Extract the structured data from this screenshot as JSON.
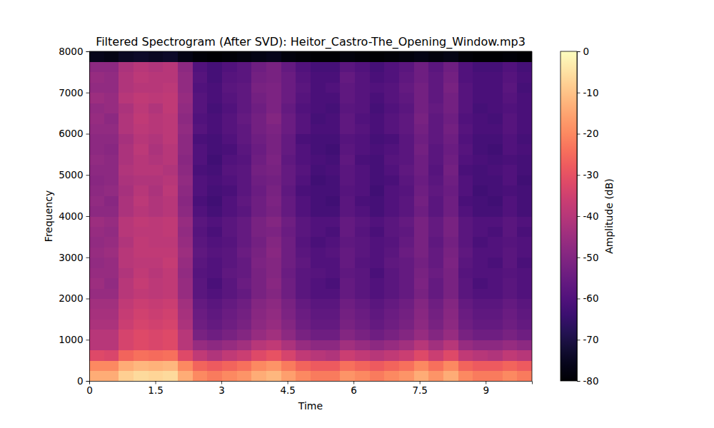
{
  "chart_data": {
    "type": "heatmap",
    "title": "Filtered Spectrogram (After SVD): Heitor_Castro-The_Opening_Window.mp3",
    "x_label": "Time",
    "y_label": "Frequency",
    "xlim": [
      0,
      10.05
    ],
    "ylim": [
      0,
      8000
    ],
    "xticks": [
      0,
      1.5,
      3,
      4.5,
      6,
      7.5,
      9
    ],
    "yticks": [
      0,
      1000,
      2000,
      3000,
      4000,
      5000,
      6000,
      7000,
      8000
    ],
    "x_edges": [
      0,
      0.335,
      0.67,
      1.005,
      1.34,
      1.675,
      2.01,
      2.345,
      2.68,
      3.015,
      3.35,
      3.685,
      4.02,
      4.355,
      4.69,
      5.025,
      5.36,
      5.695,
      6.03,
      6.365,
      6.7,
      7.035,
      7.37,
      7.705,
      8.04,
      8.375,
      8.71,
      9.045,
      9.38,
      9.715,
      10.05
    ],
    "y_edges": [
      0,
      250,
      500,
      750,
      1000,
      1250,
      1500,
      1750,
      2000,
      2250,
      2500,
      2750,
      3000,
      3250,
      3500,
      3750,
      4000,
      4250,
      4500,
      4750,
      5000,
      5250,
      5500,
      5750,
      6000,
      6250,
      6500,
      6750,
      7000,
      7250,
      7500,
      7750,
      8000
    ],
    "cells": [
      [
        -14,
        -14,
        -8,
        -6,
        -7,
        -6,
        -14,
        -20,
        -22,
        -20,
        -18,
        -14,
        -12,
        -16,
        -20,
        -22,
        -22,
        -18,
        -20,
        -22,
        -20,
        -18,
        -14,
        -18,
        -14,
        -20,
        -22,
        -22,
        -20,
        -22
      ],
      [
        -20,
        -20,
        -14,
        -12,
        -13,
        -12,
        -20,
        -26,
        -28,
        -26,
        -24,
        -20,
        -18,
        -22,
        -26,
        -28,
        -28,
        -24,
        -26,
        -28,
        -26,
        -24,
        -20,
        -24,
        -20,
        -26,
        -28,
        -28,
        -26,
        -28
      ],
      [
        -32,
        -33,
        -26,
        -24,
        -25,
        -24,
        -32,
        -38,
        -41,
        -38,
        -36,
        -32,
        -30,
        -34,
        -38,
        -40,
        -41,
        -36,
        -38,
        -40,
        -38,
        -36,
        -32,
        -36,
        -32,
        -38,
        -40,
        -41,
        -38,
        -40
      ],
      [
        -40,
        -40,
        -34,
        -32,
        -33,
        -32,
        -40,
        -46,
        -48,
        -46,
        -44,
        -40,
        -38,
        -42,
        -46,
        -48,
        -48,
        -44,
        -46,
        -48,
        -46,
        -44,
        -40,
        -44,
        -40,
        -46,
        -48,
        -48,
        -46,
        -48
      ],
      [
        -40,
        -40,
        -34,
        -32,
        -33,
        -32,
        -40,
        -52,
        -54,
        -52,
        -50,
        -46,
        -44,
        -48,
        -52,
        -54,
        -54,
        -50,
        -52,
        -54,
        -52,
        -50,
        -46,
        -50,
        -46,
        -52,
        -54,
        -54,
        -52,
        -54
      ],
      [
        -42,
        -42,
        -36,
        -34,
        -35,
        -34,
        -42,
        -54,
        -56,
        -54,
        -52,
        -48,
        -46,
        -50,
        -54,
        -56,
        -56,
        -52,
        -54,
        -56,
        -54,
        -52,
        -48,
        -52,
        -48,
        -54,
        -56,
        -56,
        -54,
        -56
      ],
      [
        -43,
        -43,
        -37,
        -35,
        -36,
        -35,
        -43,
        -55,
        -57,
        -55,
        -53,
        -49,
        -47,
        -51,
        -55,
        -57,
        -57,
        -53,
        -55,
        -57,
        -55,
        -53,
        -49,
        -53,
        -49,
        -55,
        -57,
        -57,
        -55,
        -57
      ],
      [
        -44,
        -44,
        -38,
        -36,
        -37,
        -36,
        -44,
        -56,
        -58,
        -56,
        -54,
        -50,
        -48,
        -52,
        -56,
        -58,
        -58,
        -54,
        -56,
        -58,
        -56,
        -54,
        -50,
        -54,
        -50,
        -56,
        -58,
        -58,
        -56,
        -58
      ],
      [
        -46,
        -46,
        -40,
        -38,
        -39,
        -38,
        -46,
        -58,
        -60,
        -58,
        -56,
        -52,
        -50,
        -54,
        -58,
        -60,
        -60,
        -56,
        -58,
        -60,
        -58,
        -56,
        -52,
        -56,
        -52,
        -58,
        -60,
        -60,
        -58,
        -60
      ],
      [
        -45,
        -47,
        -40,
        -37,
        -39,
        -38,
        -46,
        -58,
        -61,
        -58,
        -55,
        -52,
        -49,
        -54,
        -58,
        -60,
        -61,
        -56,
        -58,
        -60,
        -58,
        -56,
        -51,
        -56,
        -52,
        -58,
        -61,
        -60,
        -58,
        -60
      ],
      [
        -46,
        -46,
        -41,
        -38,
        -40,
        -38,
        -47,
        -59,
        -60,
        -57,
        -56,
        -52,
        -50,
        -55,
        -58,
        -59,
        -60,
        -57,
        -58,
        -61,
        -58,
        -56,
        -52,
        -55,
        -52,
        -59,
        -60,
        -60,
        -59,
        -60
      ],
      [
        -47,
        -46,
        -40,
        -39,
        -39,
        -37,
        -46,
        -58,
        -60,
        -58,
        -56,
        -51,
        -50,
        -54,
        -57,
        -60,
        -60,
        -56,
        -59,
        -60,
        -57,
        -56,
        -53,
        -56,
        -51,
        -58,
        -60,
        -61,
        -58,
        -61
      ],
      [
        -46,
        -45,
        -40,
        -38,
        -38,
        -38,
        -45,
        -57,
        -59,
        -58,
        -55,
        -52,
        -49,
        -54,
        -58,
        -60,
        -59,
        -56,
        -58,
        -60,
        -58,
        -55,
        -52,
        -56,
        -52,
        -57,
        -60,
        -60,
        -58,
        -60
      ],
      [
        -47,
        -46,
        -41,
        -38,
        -39,
        -39,
        -46,
        -58,
        -60,
        -59,
        -56,
        -53,
        -50,
        -54,
        -59,
        -61,
        -60,
        -57,
        -58,
        -60,
        -59,
        -56,
        -52,
        -57,
        -53,
        -58,
        -61,
        -60,
        -59,
        -60
      ],
      [
        -46,
        -47,
        -40,
        -39,
        -39,
        -38,
        -47,
        -59,
        -61,
        -58,
        -56,
        -52,
        -51,
        -55,
        -58,
        -60,
        -61,
        -56,
        -59,
        -61,
        -58,
        -57,
        -52,
        -56,
        -52,
        -58,
        -60,
        -61,
        -58,
        -61
      ],
      [
        -45,
        -46,
        -40,
        -38,
        -39,
        -38,
        -46,
        -58,
        -60,
        -58,
        -56,
        -52,
        -50,
        -54,
        -58,
        -60,
        -60,
        -56,
        -58,
        -60,
        -58,
        -56,
        -52,
        -56,
        -52,
        -58,
        -60,
        -60,
        -58,
        -60
      ],
      [
        -48,
        -48,
        -42,
        -40,
        -41,
        -40,
        -48,
        -60,
        -62,
        -60,
        -58,
        -54,
        -52,
        -56,
        -60,
        -62,
        -62,
        -58,
        -60,
        -62,
        -60,
        -58,
        -54,
        -58,
        -54,
        -60,
        -62,
        -62,
        -60,
        -62
      ],
      [
        -47,
        -49,
        -42,
        -39,
        -41,
        -40,
        -49,
        -61,
        -63,
        -60,
        -57,
        -54,
        -51,
        -56,
        -60,
        -62,
        -63,
        -58,
        -61,
        -62,
        -60,
        -58,
        -53,
        -58,
        -54,
        -61,
        -62,
        -63,
        -60,
        -62
      ],
      [
        -48,
        -47,
        -43,
        -40,
        -42,
        -39,
        -48,
        -60,
        -62,
        -61,
        -58,
        -55,
        -52,
        -57,
        -61,
        -62,
        -62,
        -59,
        -60,
        -63,
        -60,
        -59,
        -54,
        -57,
        -55,
        -60,
        -63,
        -62,
        -61,
        -62
      ],
      [
        -49,
        -48,
        -42,
        -41,
        -41,
        -40,
        -47,
        -60,
        -61,
        -60,
        -58,
        -54,
        -53,
        -56,
        -60,
        -63,
        -62,
        -58,
        -60,
        -62,
        -61,
        -58,
        -55,
        -58,
        -54,
        -60,
        -62,
        -62,
        -60,
        -63
      ],
      [
        -48,
        -48,
        -41,
        -40,
        -40,
        -41,
        -48,
        -61,
        -62,
        -59,
        -58,
        -53,
        -52,
        -56,
        -59,
        -62,
        -61,
        -58,
        -60,
        -62,
        -60,
        -57,
        -54,
        -59,
        -53,
        -61,
        -62,
        -61,
        -60,
        -62
      ],
      [
        -47,
        -48,
        -42,
        -40,
        -41,
        -40,
        -49,
        -60,
        -63,
        -60,
        -59,
        -54,
        -51,
        -57,
        -60,
        -61,
        -62,
        -57,
        -61,
        -62,
        -59,
        -58,
        -54,
        -58,
        -54,
        -60,
        -61,
        -62,
        -61,
        -62
      ],
      [
        -48,
        -49,
        -42,
        -39,
        -42,
        -40,
        -48,
        -60,
        -62,
        -61,
        -58,
        -55,
        -52,
        -56,
        -60,
        -62,
        -63,
        -58,
        -60,
        -61,
        -60,
        -58,
        -53,
        -58,
        -55,
        -59,
        -62,
        -63,
        -60,
        -61
      ],
      [
        -48,
        -48,
        -43,
        -40,
        -41,
        -39,
        -48,
        -61,
        -62,
        -60,
        -57,
        -54,
        -52,
        -56,
        -61,
        -62,
        -62,
        -59,
        -60,
        -62,
        -61,
        -58,
        -54,
        -57,
        -54,
        -60,
        -62,
        -62,
        -60,
        -62
      ],
      [
        -47,
        -47,
        -41,
        -39,
        -40,
        -39,
        -47,
        -59,
        -61,
        -59,
        -57,
        -53,
        -51,
        -55,
        -59,
        -61,
        -61,
        -57,
        -59,
        -61,
        -59,
        -57,
        -53,
        -57,
        -53,
        -59,
        -61,
        -61,
        -59,
        -61
      ],
      [
        -46,
        -48,
        -41,
        -38,
        -40,
        -39,
        -48,
        -60,
        -61,
        -59,
        -56,
        -53,
        -50,
        -55,
        -59,
        -62,
        -61,
        -57,
        -60,
        -61,
        -59,
        -57,
        -52,
        -57,
        -54,
        -60,
        -61,
        -62,
        -59,
        -61
      ],
      [
        -47,
        -46,
        -42,
        -39,
        -41,
        -38,
        -47,
        -59,
        -62,
        -60,
        -57,
        -54,
        -51,
        -56,
        -60,
        -61,
        -62,
        -58,
        -59,
        -62,
        -60,
        -58,
        -53,
        -56,
        -53,
        -59,
        -62,
        -61,
        -60,
        -61
      ],
      [
        -45,
        -46,
        -40,
        -38,
        -39,
        -38,
        -46,
        -59,
        -61,
        -59,
        -57,
        -53,
        -51,
        -55,
        -59,
        -61,
        -61,
        -57,
        -59,
        -61,
        -59,
        -57,
        -53,
        -57,
        -53,
        -59,
        -61,
        -61,
        -59,
        -61
      ],
      [
        -47,
        -47,
        -41,
        -40,
        -40,
        -39,
        -47,
        -60,
        -61,
        -58,
        -57,
        -52,
        -51,
        -55,
        -58,
        -61,
        -60,
        -57,
        -59,
        -60,
        -59,
        -56,
        -53,
        -57,
        -52,
        -59,
        -61,
        -61,
        -58,
        -62
      ],
      [
        -46,
        -47,
        -41,
        -39,
        -40,
        -40,
        -47,
        -59,
        -62,
        -59,
        -58,
        -53,
        -52,
        -55,
        -59,
        -61,
        -61,
        -56,
        -59,
        -61,
        -60,
        -57,
        -54,
        -57,
        -53,
        -60,
        -61,
        -61,
        -59,
        -61
      ],
      [
        -48,
        -48,
        -42,
        -40,
        -41,
        -40,
        -48,
        -60,
        -62,
        -60,
        -58,
        -54,
        -52,
        -56,
        -60,
        -62,
        -62,
        -58,
        -60,
        -62,
        -60,
        -58,
        -54,
        -58,
        -54,
        -60,
        -62,
        -62,
        -60,
        -62
      ],
      [
        -76,
        -77,
        -75,
        -74,
        -75,
        -74,
        -77,
        -79,
        -80,
        -79,
        -78,
        -77,
        -76,
        -78,
        -79,
        -80,
        -80,
        -78,
        -79,
        -80,
        -79,
        -78,
        -77,
        -78,
        -77,
        -79,
        -80,
        -80,
        -79,
        -80
      ]
    ],
    "colorbar": {
      "label": "Amplitude (dB)",
      "range": [
        -80,
        0
      ],
      "ticks": [
        -80,
        -70,
        -60,
        -50,
        -40,
        -30,
        -20,
        -10,
        0
      ]
    }
  }
}
